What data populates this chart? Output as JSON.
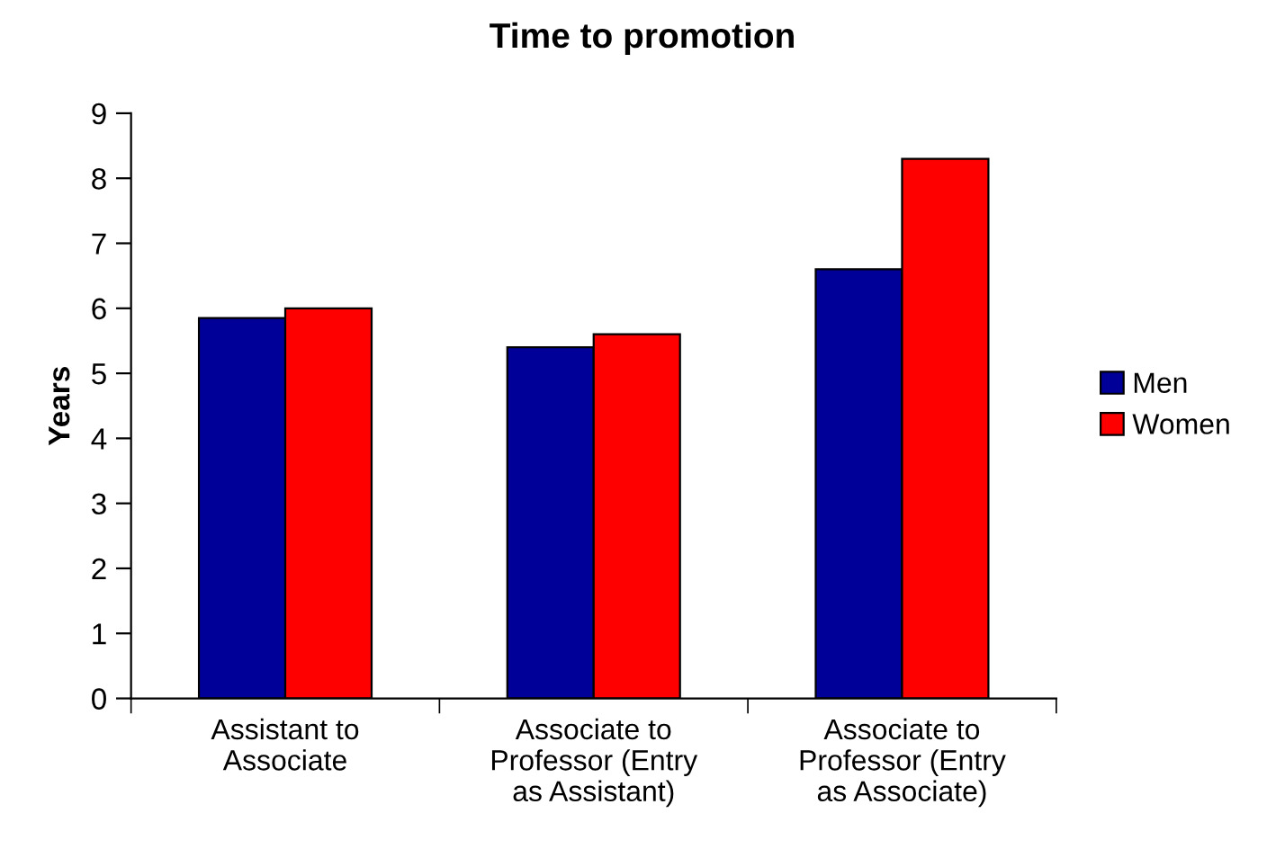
{
  "chart_data": {
    "type": "bar",
    "title": "Time to promotion",
    "ylabel": "Years",
    "categories": [
      "Assistant to\nAssociate",
      "Associate to\nProfessor (Entry\nas Assistant)",
      "Associate to\nProfessor (Entry\nas Associate)"
    ],
    "series": [
      {
        "name": "Men",
        "color": "#000099",
        "values": [
          5.85,
          5.4,
          6.6
        ]
      },
      {
        "name": "Women",
        "color": "#ff0000",
        "values": [
          6.0,
          5.6,
          8.3
        ]
      }
    ],
    "ylim": [
      0,
      9
    ],
    "yticks": [
      0,
      1,
      2,
      3,
      4,
      5,
      6,
      7,
      8,
      9
    ],
    "grid": false,
    "legend": "right"
  }
}
